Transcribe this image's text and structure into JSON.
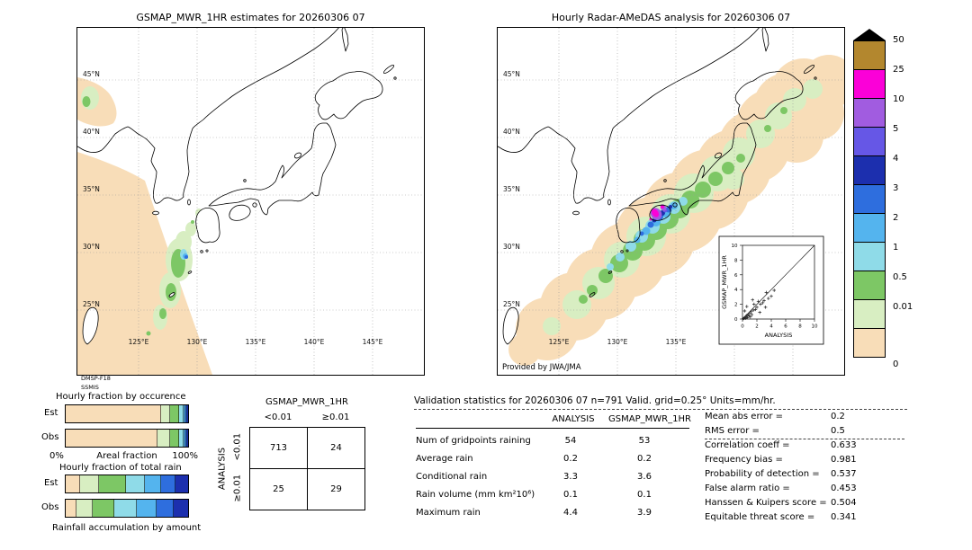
{
  "figure": {
    "left_map_title": "GSMAP_MWR_1HR estimates for 20260306 07",
    "right_map_title": "Hourly Radar-AMeDAS analysis for 20260306 07"
  },
  "palette": {
    "peach": "#f8ddb8",
    "palegreen": "#d8eec2",
    "green": "#7dc765",
    "cyan": "#8fdbe8",
    "lightblue": "#54b4ee",
    "blue": "#2e6ede",
    "darkblue": "#1c2fae",
    "blueviolet": "#6657e6",
    "purple": "#a15ce0",
    "magenta": "#fb00d8",
    "brown": "#b3872e"
  },
  "maps": {
    "lat_labels": [
      "45°N",
      "40°N",
      "35°N",
      "30°N",
      "25°N"
    ],
    "lon_labels": [
      "125°E",
      "130°E",
      "135°E",
      "140°E",
      "145°E"
    ],
    "left_source": [
      "DMSP-F18",
      "SSMIS"
    ],
    "right_credit": "Provided by JWA/JMA"
  },
  "colorbar": {
    "labels": [
      "50",
      "25",
      "10",
      "5",
      "4",
      "3",
      "2",
      "1",
      "0.5",
      "0.01",
      "0"
    ]
  },
  "fractions": {
    "occurrence_title": "Hourly fraction by occurence",
    "total_title": "Hourly fraction of total rain",
    "est_label": "Est",
    "obs_label": "Obs",
    "pct0": "0%",
    "pct100": "100%",
    "areal_label": "Areal fraction",
    "accum_label": "Rainfall accumulation by amount"
  },
  "contingency": {
    "title": "GSMAP_MWR_1HR",
    "row_axis": "ANALYSIS",
    "col_headers": [
      "<0.01",
      "≥0.01"
    ],
    "row_headers": [
      "<0.01",
      "≥0.01"
    ],
    "values": [
      [
        713,
        24
      ],
      [
        25,
        29
      ]
    ]
  },
  "validation": {
    "title": "Validation statistics for 20260306 07  n=791 Valid. grid=0.25° Units=mm/hr.",
    "col_headers": [
      "ANALYSIS",
      "GSMAP_MWR_1HR"
    ],
    "rows": [
      {
        "label": "Num of gridpoints raining",
        "analysis": "54",
        "gsmap": "53"
      },
      {
        "label": "Average rain",
        "analysis": "0.2",
        "gsmap": "0.2"
      },
      {
        "label": "Conditional rain",
        "analysis": "3.3",
        "gsmap": "3.6"
      },
      {
        "label": "Rain volume (mm km²10⁶)",
        "analysis": "0.1",
        "gsmap": "0.1"
      },
      {
        "label": "Maximum rain",
        "analysis": "4.4",
        "gsmap": "3.9"
      }
    ],
    "stats": [
      {
        "label": "Mean abs error =",
        "value": "0.2"
      },
      {
        "label": "RMS error =",
        "value": "0.5"
      },
      {
        "label": "Correlation coeff =",
        "value": "0.633"
      },
      {
        "label": "Frequency bias =",
        "value": "0.981"
      },
      {
        "label": "Probability of detection =",
        "value": "0.537"
      },
      {
        "label": "False alarm ratio =",
        "value": "0.453"
      },
      {
        "label": "Hanssen & Kuipers score =",
        "value": "0.504"
      },
      {
        "label": "Equitable threat score =",
        "value": "0.341"
      }
    ]
  },
  "chart_data": [
    {
      "type": "bar",
      "id": "hourly-fraction-by-occurrence",
      "orientation": "horizontal_stacked",
      "title": "Hourly fraction by occurence",
      "xlabel": "Areal fraction",
      "xlim": [
        "0%",
        "100%"
      ],
      "categories": [
        "Est",
        "Obs"
      ],
      "series": [
        {
          "name": "Est",
          "segments": [
            {
              "color": "peach",
              "value": 0.78
            },
            {
              "color": "palegreen",
              "value": 0.07
            },
            {
              "color": "green",
              "value": 0.08
            },
            {
              "color": "cyan",
              "value": 0.03
            },
            {
              "color": "lightblue",
              "value": 0.02
            },
            {
              "color": "blue",
              "value": 0.01
            },
            {
              "color": "darkblue",
              "value": 0.01
            }
          ]
        },
        {
          "name": "Obs",
          "segments": [
            {
              "color": "peach",
              "value": 0.75
            },
            {
              "color": "palegreen",
              "value": 0.1
            },
            {
              "color": "green",
              "value": 0.08
            },
            {
              "color": "cyan",
              "value": 0.03
            },
            {
              "color": "lightblue",
              "value": 0.02
            },
            {
              "color": "blue",
              "value": 0.01
            },
            {
              "color": "darkblue",
              "value": 0.01
            }
          ]
        }
      ]
    },
    {
      "type": "bar",
      "id": "hourly-fraction-of-total-rain",
      "orientation": "horizontal_stacked",
      "title": "Hourly fraction of total rain",
      "xlabel": "Rainfall accumulation by amount",
      "categories": [
        "Est",
        "Obs"
      ],
      "series": [
        {
          "name": "Est",
          "segments": [
            {
              "color": "peach",
              "value": 0.12
            },
            {
              "color": "palegreen",
              "value": 0.15
            },
            {
              "color": "green",
              "value": 0.22
            },
            {
              "color": "cyan",
              "value": 0.16
            },
            {
              "color": "lightblue",
              "value": 0.13
            },
            {
              "color": "blue",
              "value": 0.12
            },
            {
              "color": "darkblue",
              "value": 0.1
            }
          ]
        },
        {
          "name": "Obs",
          "segments": [
            {
              "color": "peach",
              "value": 0.09
            },
            {
              "color": "palegreen",
              "value": 0.13
            },
            {
              "color": "green",
              "value": 0.18
            },
            {
              "color": "cyan",
              "value": 0.18
            },
            {
              "color": "lightblue",
              "value": 0.16
            },
            {
              "color": "blue",
              "value": 0.14
            },
            {
              "color": "darkblue",
              "value": 0.12
            }
          ]
        }
      ]
    },
    {
      "type": "table",
      "id": "contingency-table",
      "title": "GSMAP_MWR_1HR",
      "row_axis": "ANALYSIS",
      "row_labels": [
        "<0.01",
        "≥0.01"
      ],
      "col_labels": [
        "<0.01",
        "≥0.01"
      ],
      "values": [
        [
          713,
          24
        ],
        [
          25,
          29
        ]
      ]
    },
    {
      "type": "scatter",
      "id": "inset-scatter",
      "xlabel": "ANALYSIS",
      "ylabel": "GSMAP_MWR_1HR",
      "xlim": [
        0,
        10
      ],
      "ylim": [
        0,
        10
      ],
      "ticks": [
        "0",
        "2",
        "4",
        "6",
        "8",
        "10"
      ],
      "points": [
        [
          0.1,
          0.05
        ],
        [
          0.2,
          0.1
        ],
        [
          0.3,
          0.2
        ],
        [
          0.4,
          0.1
        ],
        [
          0.5,
          0.3
        ],
        [
          0.6,
          0.5
        ],
        [
          0.7,
          0.2
        ],
        [
          0.8,
          0.6
        ],
        [
          0.9,
          0.4
        ],
        [
          1,
          0.8
        ],
        [
          1.1,
          0.3
        ],
        [
          1.2,
          1
        ],
        [
          1.3,
          0.6
        ],
        [
          1.5,
          1.2
        ],
        [
          1.6,
          2
        ],
        [
          1.8,
          1.3
        ],
        [
          2,
          1.6
        ],
        [
          2.2,
          2.4
        ],
        [
          2.4,
          0.9
        ],
        [
          2.5,
          2
        ],
        [
          2.8,
          2.2
        ],
        [
          3,
          2.5
        ],
        [
          3.2,
          1.6
        ],
        [
          3.3,
          3.6
        ],
        [
          3.6,
          2.8
        ],
        [
          4,
          3.1
        ],
        [
          4.4,
          3.9
        ],
        [
          0.3,
          1.1
        ],
        [
          0.6,
          1.7
        ],
        [
          1.4,
          2.6
        ]
      ]
    },
    {
      "type": "table",
      "id": "validation-statistics",
      "columns": [
        "ANALYSIS",
        "GSMAP_MWR_1HR"
      ],
      "rows": [
        [
          "Num of gridpoints raining",
          54,
          53
        ],
        [
          "Average rain",
          0.2,
          0.2
        ],
        [
          "Conditional rain",
          3.3,
          3.6
        ],
        [
          "Rain volume (mm km²10⁶)",
          0.1,
          0.1
        ],
        [
          "Maximum rain",
          4.4,
          3.9
        ]
      ]
    }
  ]
}
